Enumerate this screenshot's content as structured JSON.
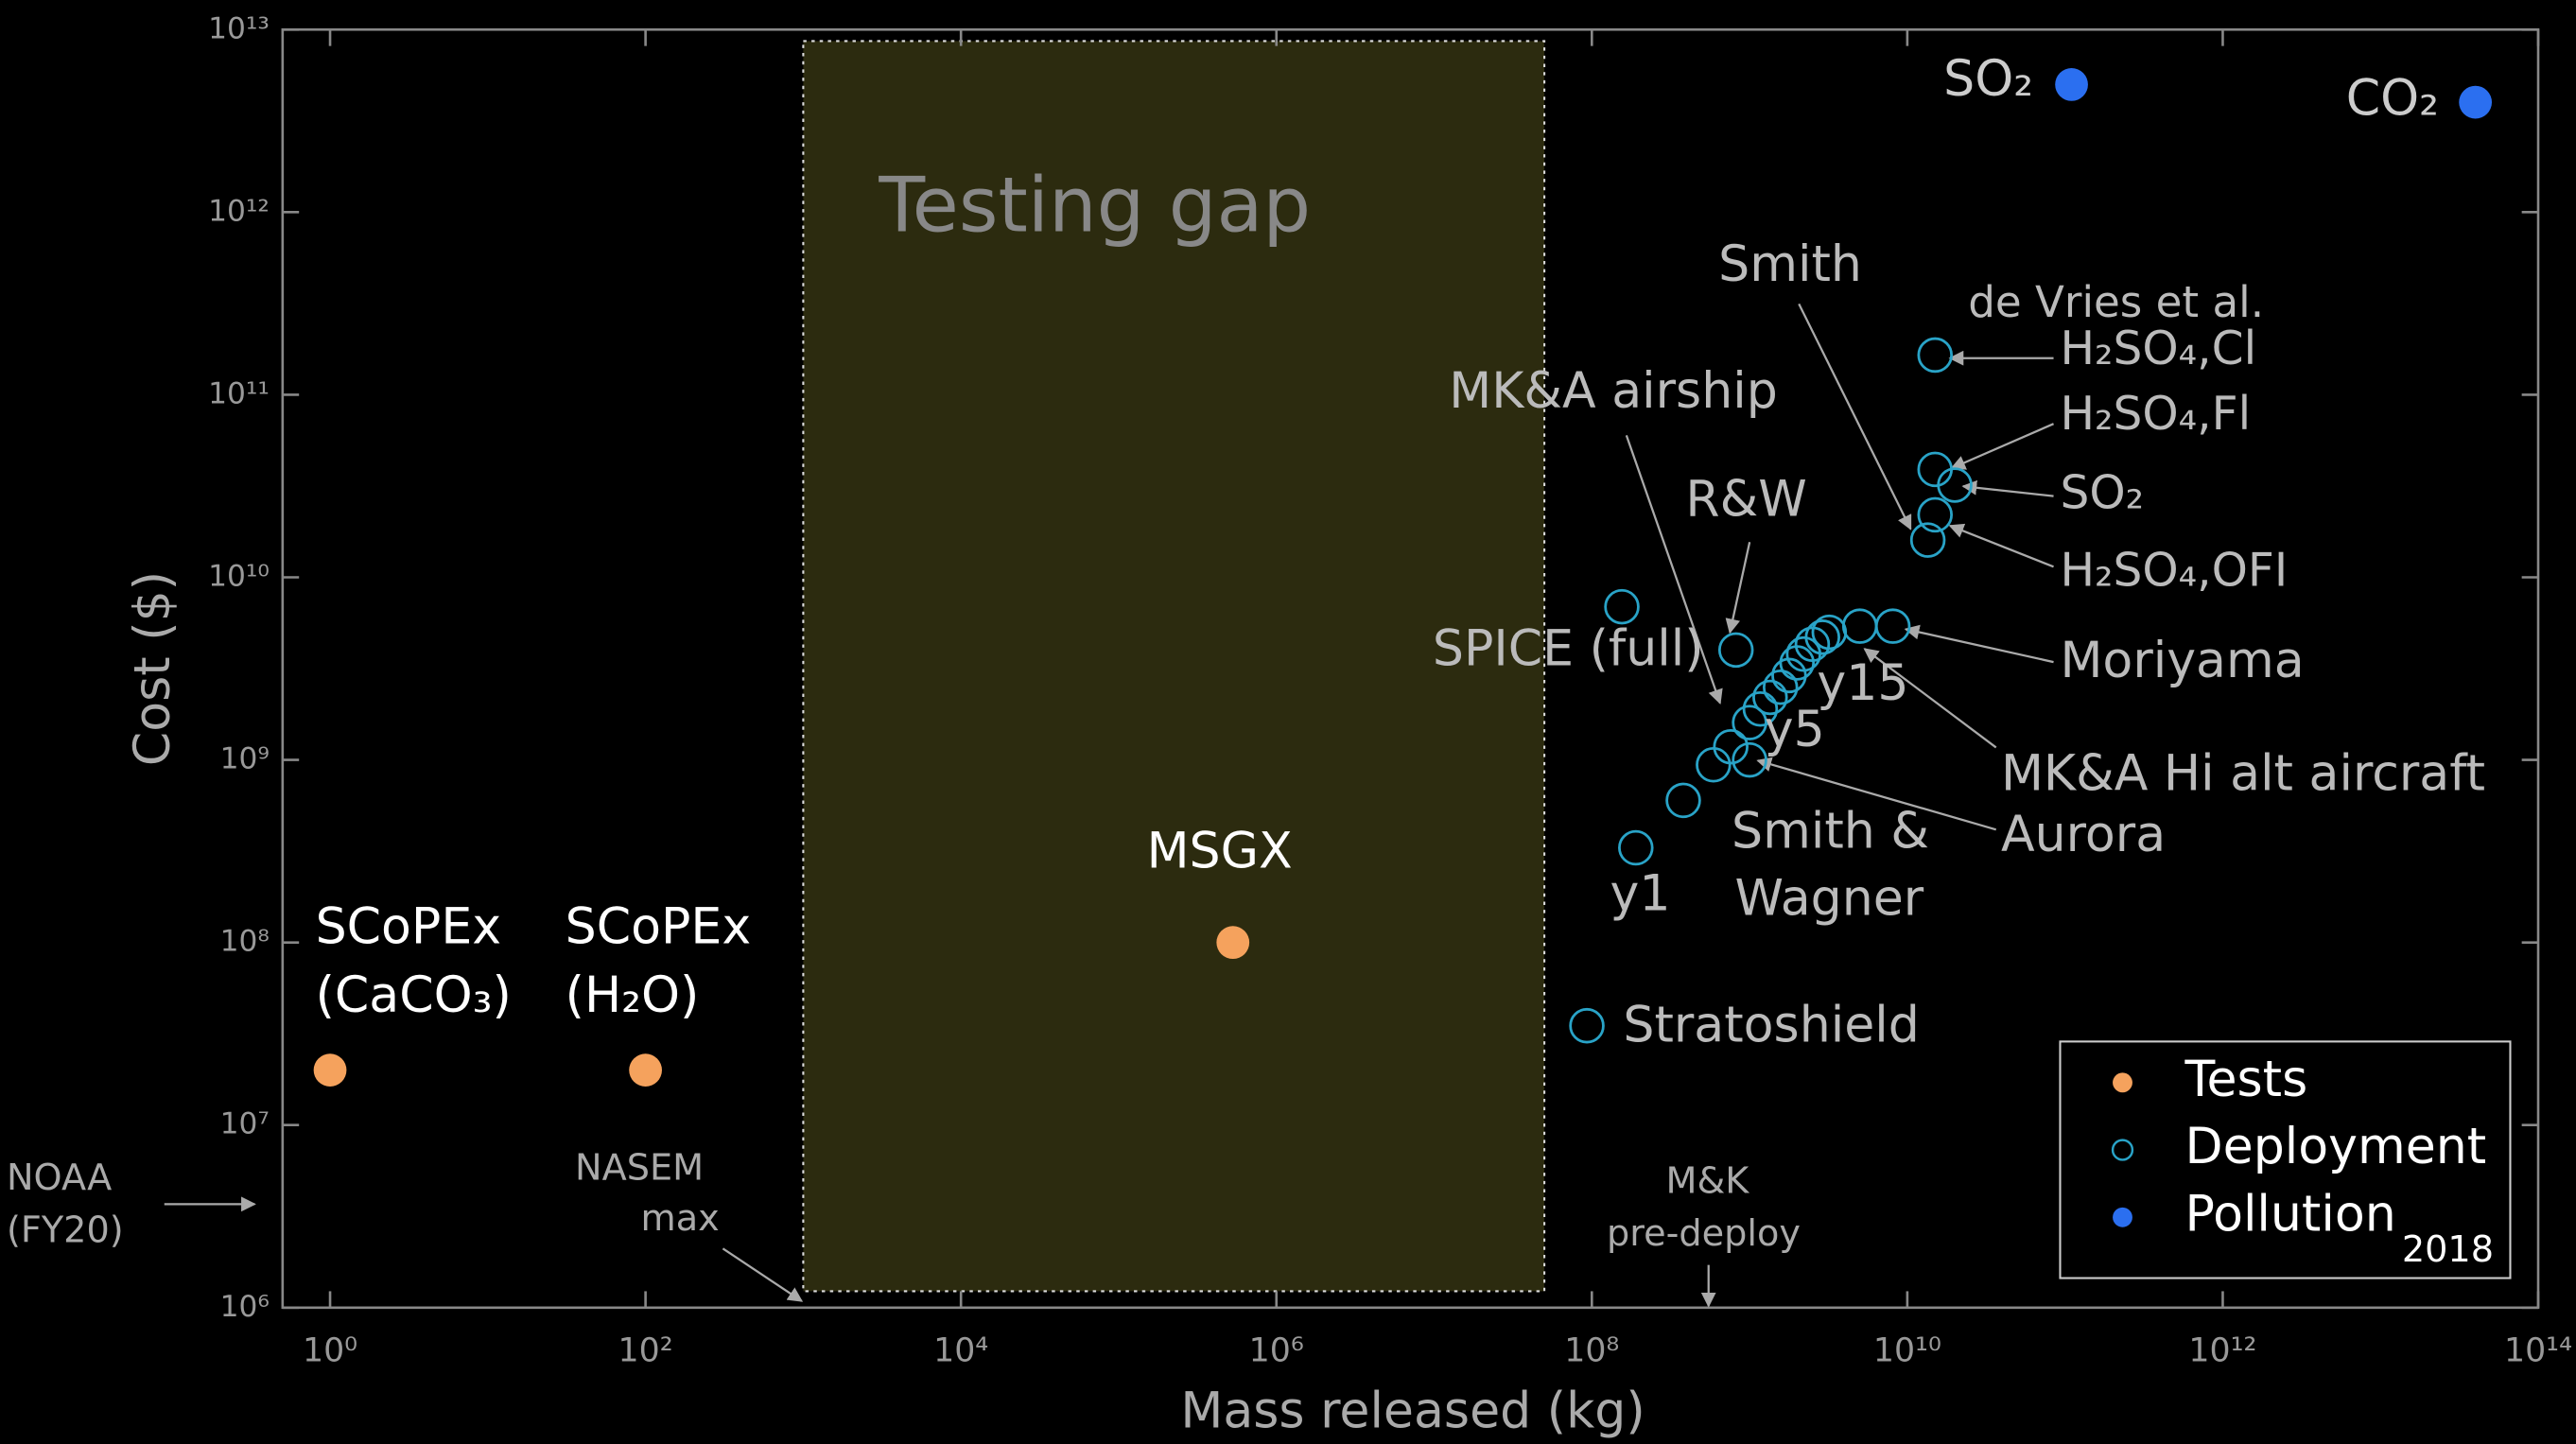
{
  "chart_data": {
    "type": "scatter",
    "x_label": "Mass released (kg)",
    "y_label": "Cost ($)",
    "log_x": true,
    "log_y": true,
    "xlim": [
      0.5,
      100000000000000
    ],
    "ylim": [
      1000000,
      10000000000000
    ],
    "xticks": [
      {
        "value": 1,
        "label": "10⁰"
      },
      {
        "value": 100,
        "label": "10²"
      },
      {
        "value": 10000,
        "label": "10⁴"
      },
      {
        "value": 1000000,
        "label": "10⁶"
      },
      {
        "value": 100000000,
        "label": "10⁸"
      },
      {
        "value": 10000000000,
        "label": "10¹⁰"
      },
      {
        "value": 1000000000000,
        "label": "10¹²"
      },
      {
        "value": 100000000000000,
        "label": "10¹⁴"
      }
    ],
    "yticks": [
      {
        "value": 1000000,
        "label": "10⁶"
      },
      {
        "value": 10000000,
        "label": "10⁷"
      },
      {
        "value": 100000000,
        "label": "10⁸"
      },
      {
        "value": 1000000000,
        "label": "10⁹"
      },
      {
        "value": 10000000000,
        "label": "10¹⁰"
      },
      {
        "value": 100000000000,
        "label": "10¹¹"
      },
      {
        "value": 1000000000000,
        "label": "10¹²"
      },
      {
        "value": 10000000000000,
        "label": "10¹³"
      }
    ],
    "shaded_region": {
      "xlim": [
        1000,
        50000000
      ],
      "color": "#2c2b0f"
    },
    "series": [
      {
        "name": "Tests",
        "color": "#f5a25d",
        "marker": "filled",
        "x": [
          1,
          100,
          530000
        ],
        "values": [
          20000000,
          20000000,
          100000000
        ]
      },
      {
        "name": "Deployment",
        "color": "#29a3c7",
        "marker": "open",
        "x": [
          155000000,
          820000000,
          93000000,
          190000000,
          380000000,
          590000000,
          760000000,
          1000000000,
          1000000000,
          1170000000,
          1350000000,
          1570000000,
          1780000000,
          2000000000,
          2200000000,
          2500000000,
          2900000000,
          3200000000,
          5000000000,
          8100000000,
          15000000000,
          15000000000,
          20000000000,
          15000000000,
          13500000000
        ],
        "values": [
          6900000000,
          4000000000,
          35000000,
          330000000,
          600000000,
          940000000,
          1180000000,
          1000000000,
          1600000000,
          1900000000,
          2200000000,
          2500000000,
          2900000000,
          3400000000,
          3800000000,
          4300000000,
          4700000000,
          5000000000,
          5400000000,
          5400000000,
          165000000000,
          39000000000,
          32000000000,
          22000000000,
          16000000000
        ]
      },
      {
        "name": "Pollution",
        "color": "#2b6ff0",
        "marker": "filled",
        "x": [
          110000000000,
          40000000000000
        ],
        "values": [
          5000000000000,
          4000000000000
        ]
      }
    ],
    "legend": "lower right",
    "legend_note": "2018",
    "annotations": [
      "Testing gap",
      "SCoPEx",
      "(CaCO₃)",
      "SCoPEx",
      "(H₂O)",
      "MSGX",
      "Smith",
      "de Vries et al.",
      "H₂SO₄,Cl",
      "H₂SO₄,Fl",
      "SO₂",
      "H₂SO₄,OFI",
      "MK&A airship",
      "R&W",
      "SPICE (full)",
      "y15",
      "y5",
      "y1",
      "Moriyama",
      "MK&A Hi alt aircraft",
      "Aurora",
      "Smith &",
      "Wagner",
      "Stratoshield",
      "SO₂",
      "CO₂",
      "NOAA",
      "(FY20)",
      "NASEM",
      "max",
      "M&K",
      "pre-deploy"
    ]
  }
}
